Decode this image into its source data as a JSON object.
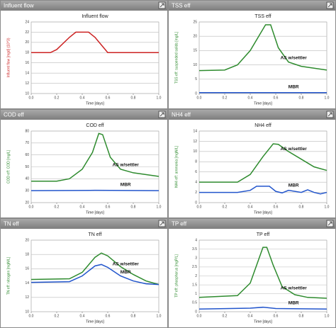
{
  "chart_data": [
    {
      "type": "line",
      "panel_title": "Influent flow",
      "title": "Influent flow",
      "ylabel": "Influent flow [mgd] (10^3)",
      "xlabel": "Time [days]",
      "ylim": [
        10,
        24
      ],
      "yticks": [
        10,
        12,
        14,
        16,
        18,
        20,
        22,
        24
      ],
      "xlim": [
        0,
        1
      ],
      "xticks": [
        {
          "value": 0,
          "label": "0.0"
        },
        0.2,
        0.4,
        0.6,
        0.8,
        {
          "value": 1,
          "label": "1.0"
        }
      ],
      "grid": true,
      "series": [
        {
          "color": "#cc2222",
          "x": [
            0,
            0.15,
            0.2,
            0.3,
            0.35,
            0.45,
            0.5,
            0.6,
            1.0
          ],
          "values": [
            18,
            18,
            18.6,
            21,
            22,
            22,
            21,
            18,
            18
          ]
        }
      ]
    },
    {
      "type": "line",
      "panel_title": "TSS eff",
      "title": "TSS eff",
      "ylabel": "TSS eff: suspended solids [mg/L]",
      "xlabel": "Time [days]",
      "ylim": [
        0,
        25
      ],
      "yticks": [
        0,
        5,
        10,
        15,
        20,
        25
      ],
      "xlim": [
        0,
        1
      ],
      "xticks": [
        {
          "value": 0,
          "label": "0.0"
        },
        0.2,
        0.4,
        0.6,
        0.8,
        {
          "value": 1,
          "label": "1.0"
        }
      ],
      "grid": true,
      "series": [
        {
          "name": "AS w/settler",
          "color": "#2e8b2e",
          "x": [
            0,
            0.2,
            0.3,
            0.4,
            0.48,
            0.52,
            0.56,
            0.62,
            0.7,
            0.8,
            1.0
          ],
          "values": [
            8,
            8.2,
            10,
            15,
            21,
            24,
            24,
            16,
            11,
            9.5,
            8.2
          ]
        },
        {
          "name": "MBR",
          "color": "#2255cc",
          "x": [
            0,
            1.0
          ],
          "values": [
            0.3,
            0.3
          ]
        }
      ]
    },
    {
      "type": "line",
      "panel_title": "COD eff",
      "title": "COD eff",
      "ylabel": "COD eff: COD [mg/L]",
      "xlabel": "Time [days]",
      "ylim": [
        20,
        80
      ],
      "yticks": [
        20,
        30,
        40,
        50,
        60,
        70,
        80
      ],
      "xlim": [
        0,
        1
      ],
      "xticks": [
        {
          "value": 0,
          "label": "0.0"
        },
        0.2,
        0.4,
        0.6,
        0.8,
        {
          "value": 1,
          "label": "1.0"
        }
      ],
      "grid": true,
      "series": [
        {
          "name": "AS w/settler",
          "color": "#2e8b2e",
          "x": [
            0,
            0.2,
            0.3,
            0.4,
            0.48,
            0.53,
            0.56,
            0.62,
            0.7,
            0.8,
            1.0
          ],
          "values": [
            38,
            38,
            40,
            48,
            62,
            78,
            77,
            58,
            48,
            45,
            42
          ]
        },
        {
          "name": "MBR",
          "color": "#2255cc",
          "x": [
            0,
            0.5,
            1.0
          ],
          "values": [
            30,
            30.3,
            30
          ]
        }
      ]
    },
    {
      "type": "line",
      "panel_title": "NH4 eff",
      "title": "NH4 eff",
      "ylabel": "NH4 eff: ammonia [mgN/L]",
      "xlabel": "Time [days]",
      "ylim": [
        0,
        14
      ],
      "yticks": [
        0,
        2,
        4,
        6,
        8,
        10,
        12,
        14
      ],
      "xlim": [
        0,
        1
      ],
      "xticks": [
        {
          "value": 0,
          "label": "0.0"
        },
        0.2,
        0.4,
        0.6,
        0.8,
        {
          "value": 1,
          "label": "1.0"
        }
      ],
      "grid": true,
      "series": [
        {
          "name": "AS w/settler",
          "color": "#2e8b2e",
          "x": [
            0,
            0.3,
            0.4,
            0.5,
            0.58,
            0.62,
            0.7,
            0.8,
            0.9,
            1.0
          ],
          "values": [
            4,
            4,
            5.5,
            9,
            11.5,
            11.4,
            10,
            8.5,
            7,
            6.3
          ]
        },
        {
          "name": "MBR",
          "color": "#2255cc",
          "x": [
            0,
            0.3,
            0.4,
            0.45,
            0.55,
            0.6,
            0.65,
            0.7,
            0.8,
            0.85,
            0.9,
            0.95,
            1.0
          ],
          "values": [
            2,
            2,
            2.4,
            3.2,
            3.2,
            2.2,
            1.9,
            2.4,
            2,
            2.5,
            2,
            1.7,
            2
          ]
        }
      ]
    },
    {
      "type": "line",
      "panel_title": "TN eff",
      "title": "TN eff",
      "ylabel": "TN eff: nitrogen [mgN/L]",
      "xlabel": "Time [days]",
      "ylim": [
        10,
        20
      ],
      "yticks": [
        10,
        12,
        14,
        16,
        18,
        20
      ],
      "xlim": [
        0,
        1
      ],
      "xticks": [
        {
          "value": 0,
          "label": "0.0"
        },
        0.2,
        0.4,
        0.6,
        0.8,
        {
          "value": 1,
          "label": "1.0"
        }
      ],
      "grid": true,
      "series": [
        {
          "name": "AS w/settler",
          "color": "#2e8b2e",
          "x": [
            0,
            0.3,
            0.4,
            0.5,
            0.55,
            0.6,
            0.7,
            0.8,
            0.9,
            1.0
          ],
          "values": [
            14.5,
            14.6,
            15.5,
            17.6,
            18.2,
            17.8,
            16.3,
            15.2,
            14.3,
            13.8
          ]
        },
        {
          "name": "MBR",
          "color": "#2255cc",
          "x": [
            0,
            0.3,
            0.4,
            0.5,
            0.55,
            0.6,
            0.7,
            0.8,
            0.9,
            1.0
          ],
          "values": [
            14.1,
            14.2,
            15,
            16.4,
            16.6,
            16.2,
            15,
            14.3,
            13.9,
            13.8
          ]
        }
      ]
    },
    {
      "type": "line",
      "panel_title": "TP eff",
      "title": "TP eff",
      "ylabel": "TP eff: phosphorus [mgP/L]",
      "xlabel": "Time [days]",
      "ylim": [
        0,
        4
      ],
      "yticks": [
        0,
        0.5,
        1,
        1.5,
        2,
        2.5,
        3,
        3.5,
        4
      ],
      "xlim": [
        0,
        1
      ],
      "xticks": [
        {
          "value": 0,
          "label": "0.0"
        },
        0.2,
        0.4,
        0.6,
        0.8,
        {
          "value": 1,
          "label": "1.0"
        }
      ],
      "grid": true,
      "series": [
        {
          "name": "AS w/settler",
          "color": "#2e8b2e",
          "x": [
            0,
            0.3,
            0.4,
            0.45,
            0.5,
            0.53,
            0.58,
            0.65,
            0.75,
            0.85,
            1.0
          ],
          "values": [
            0.8,
            0.9,
            1.6,
            2.6,
            3.6,
            3.6,
            2.6,
            1.4,
            0.95,
            0.8,
            0.75
          ]
        },
        {
          "name": "MBR",
          "color": "#2255cc",
          "x": [
            0,
            0.4,
            0.5,
            0.6,
            1.0
          ],
          "values": [
            0.15,
            0.2,
            0.25,
            0.18,
            0.15
          ]
        }
      ]
    }
  ]
}
